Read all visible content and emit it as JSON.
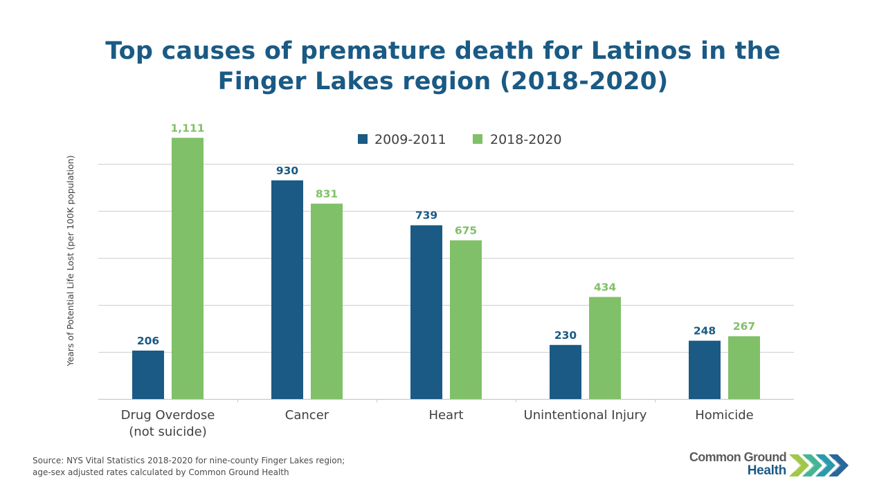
{
  "title": {
    "line1": "Top causes of premature death for Latinos in the",
    "line2": "Finger Lakes region (2018-2020)"
  },
  "colors": {
    "title": "#1a5a84",
    "series_2009": "#1a5a84",
    "series_2018": "#80c068",
    "gridline": "#d4d4d4",
    "text": "#404040"
  },
  "chart_data": {
    "type": "bar",
    "title": "Top causes of premature death for Latinos in the Finger Lakes region (2018-2020)",
    "xlabel": "",
    "ylabel": "Years of Potential Life Lost (per 100K population)",
    "ylim": [
      0,
      1000
    ],
    "ygrid_step": 200,
    "grid": true,
    "y_tick_labels_shown": false,
    "legend_position": "top-center",
    "categories": [
      [
        "Drug Overdose",
        "(not suicide)"
      ],
      [
        "Cancer"
      ],
      [
        "Heart"
      ],
      [
        "Unintentional Injury"
      ],
      [
        "Homicide"
      ]
    ],
    "series": [
      {
        "name": "2009-2011",
        "color": "#1a5a84",
        "values": [
          206,
          930,
          739,
          230,
          248
        ],
        "labels": [
          "206",
          "930",
          "739",
          "230",
          "248"
        ]
      },
      {
        "name": "2018-2020",
        "color": "#80c068",
        "values": [
          1111,
          831,
          675,
          434,
          267
        ],
        "labels": [
          "1,111",
          "831",
          "675",
          "434",
          "267"
        ]
      }
    ]
  },
  "footer": {
    "source_line1": "Source: NYS Vital Statistics 2018-2020  for nine-county Finger Lakes region;",
    "source_line2": "age-sex adjusted rates calculated by Common  Ground  Health"
  },
  "logo": {
    "line1": "Common Ground",
    "line2": "Health",
    "chevron_colors": [
      "#9ac53f",
      "#3db08e",
      "#1f95a8",
      "#1d5f96"
    ]
  }
}
